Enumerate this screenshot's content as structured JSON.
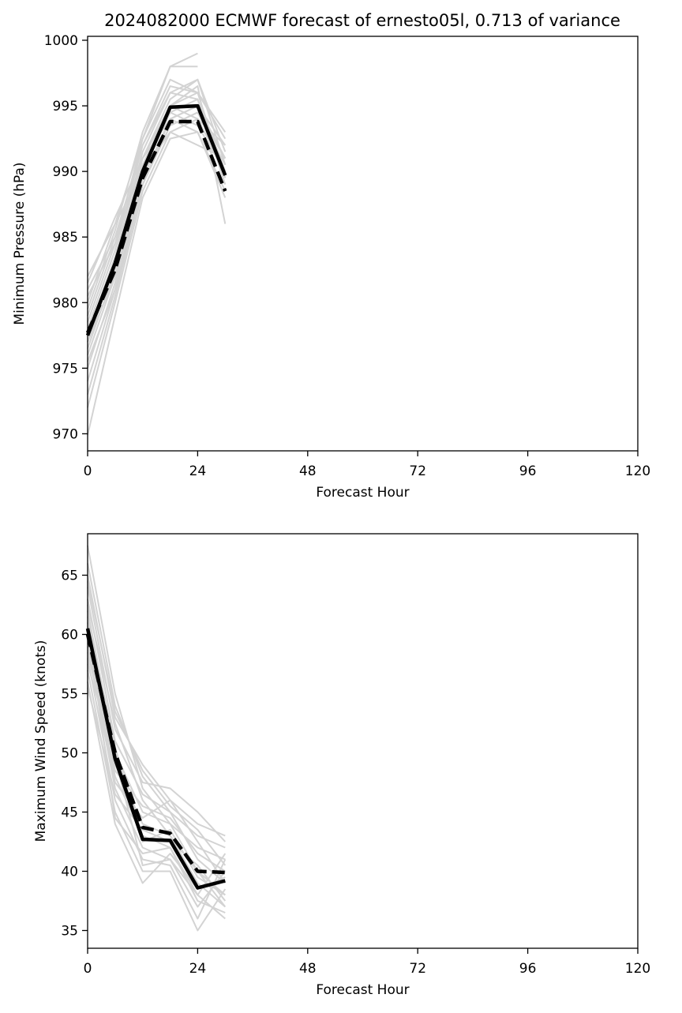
{
  "title": "2024082000 ECMWF forecast of ernesto05l, 0.713 of variance",
  "colors": {
    "ensemble_member": "#d3d3d3",
    "highlight": "#000000",
    "axes": "#000000",
    "background": "#ffffff"
  },
  "chart_data": [
    {
      "type": "line",
      "xlabel": "Forecast Hour",
      "ylabel": "Minimum Pressure (hPa)",
      "xlim": [
        0,
        120
      ],
      "ylim": [
        968.7,
        1000.3
      ],
      "xticks": [
        0,
        24,
        48,
        72,
        96,
        120
      ],
      "yticks": [
        970,
        975,
        980,
        985,
        990,
        995,
        1000
      ],
      "grid": false,
      "x": [
        0,
        6,
        12,
        18,
        24,
        30
      ],
      "ensemble": [
        [
          969.9,
          979.0,
          988.0,
          992.5,
          993.0,
          988.0
        ],
        [
          972.0,
          980.0,
          988.5,
          993.0,
          994.0,
          990.0
        ],
        [
          973.0,
          980.5,
          989.0,
          993.5,
          994.5,
          991.0
        ],
        [
          974.0,
          981.0,
          989.5,
          994.0,
          995.0,
          992.0
        ],
        [
          975.0,
          981.5,
          990.0,
          994.5,
          995.5,
          989.0
        ],
        [
          976.0,
          982.0,
          990.0,
          995.0,
          996.0,
          993.0
        ],
        [
          976.5,
          982.5,
          990.5,
          995.0,
          996.5,
          986.0
        ],
        [
          977.0,
          983.0,
          991.0,
          995.5,
          997.0,
          991.5
        ],
        [
          977.5,
          983.5,
          991.5,
          996.0,
          997.0,
          990.5
        ],
        [
          978.0,
          984.0,
          992.0,
          996.5,
          996.0,
          992.5
        ],
        [
          978.5,
          984.5,
          992.5,
          997.0,
          996.0,
          989.5
        ],
        [
          979.0,
          985.0,
          992.0,
          996.0,
          995.5,
          990.0
        ],
        [
          979.5,
          985.5,
          993.0,
          998.0,
          999.0,
          null
        ],
        [
          980.0,
          986.0,
          992.5,
          998.0,
          998.0,
          null
        ],
        [
          980.5,
          984.5,
          991.0,
          995.0,
          994.0,
          992.0
        ],
        [
          981.0,
          985.0,
          990.5,
          994.5,
          993.5,
          990.0
        ],
        [
          981.5,
          986.5,
          991.0,
          994.0,
          993.0,
          988.5
        ],
        [
          982.0,
          986.0,
          990.0,
          993.0,
          992.0,
          991.0
        ],
        [
          977.0,
          982.0,
          989.0,
          994.0,
          995.0,
          991.0
        ],
        [
          975.5,
          981.0,
          989.0,
          993.5,
          994.5,
          990.5
        ]
      ],
      "series": [
        {
          "style": "solid",
          "values": [
            977.5,
            983.0,
            990.0,
            994.9,
            995.0,
            989.7
          ]
        },
        {
          "style": "dashed",
          "values": [
            977.7,
            982.5,
            989.5,
            993.8,
            993.8,
            988.5
          ]
        }
      ]
    },
    {
      "type": "line",
      "xlabel": "Forecast Hour",
      "ylabel": "Maximum Wind Speed (knots)",
      "xlim": [
        0,
        120
      ],
      "ylim": [
        33.5,
        68.5
      ],
      "xticks": [
        0,
        24,
        48,
        72,
        96,
        120
      ],
      "yticks": [
        35,
        40,
        45,
        50,
        55,
        60,
        65
      ],
      "grid": false,
      "x": [
        0,
        6,
        12,
        18,
        24,
        30
      ],
      "ensemble": [
        [
          67.5,
          55.0,
          47.0,
          44.0,
          42.0,
          41.0
        ],
        [
          66.0,
          54.0,
          48.0,
          45.0,
          43.0,
          42.0
        ],
        [
          65.0,
          53.0,
          49.0,
          46.0,
          44.0,
          43.0
        ],
        [
          64.0,
          52.0,
          47.5,
          47.0,
          45.0,
          42.5
        ],
        [
          63.0,
          51.0,
          46.5,
          45.0,
          41.0,
          39.0
        ],
        [
          62.0,
          50.0,
          45.0,
          44.0,
          40.0,
          38.0
        ],
        [
          61.0,
          49.0,
          44.0,
          43.0,
          39.0,
          37.0
        ],
        [
          60.0,
          48.0,
          43.0,
          42.0,
          38.0,
          36.0
        ],
        [
          59.0,
          47.0,
          42.0,
          41.0,
          37.0,
          40.0
        ],
        [
          58.0,
          46.0,
          41.0,
          40.5,
          36.0,
          41.0
        ],
        [
          57.0,
          45.0,
          40.0,
          40.0,
          35.0,
          38.5
        ],
        [
          56.0,
          44.0,
          39.0,
          41.5,
          38.5,
          39.5
        ],
        [
          55.5,
          46.5,
          43.5,
          42.5,
          40.5,
          37.5
        ],
        [
          58.5,
          48.5,
          45.5,
          44.5,
          41.5,
          40.0
        ],
        [
          61.5,
          50.5,
          42.5,
          43.5,
          39.5,
          38.0
        ],
        [
          60.5,
          44.5,
          41.5,
          42.0,
          37.5,
          36.5
        ],
        [
          59.5,
          47.5,
          44.5,
          46.0,
          42.5,
          39.0
        ],
        [
          62.5,
          52.5,
          46.0,
          43.0,
          40.0,
          37.0
        ],
        [
          57.5,
          49.5,
          40.5,
          41.0,
          38.0,
          41.5
        ],
        [
          64.5,
          53.5,
          48.5,
          45.5,
          43.5,
          40.5
        ]
      ],
      "series": [
        {
          "style": "solid",
          "values": [
            60.5,
            49.5,
            42.7,
            42.6,
            38.6,
            39.2
          ]
        },
        {
          "style": "dashed",
          "values": [
            60.0,
            50.0,
            43.7,
            43.2,
            40.0,
            39.9
          ]
        }
      ]
    }
  ]
}
